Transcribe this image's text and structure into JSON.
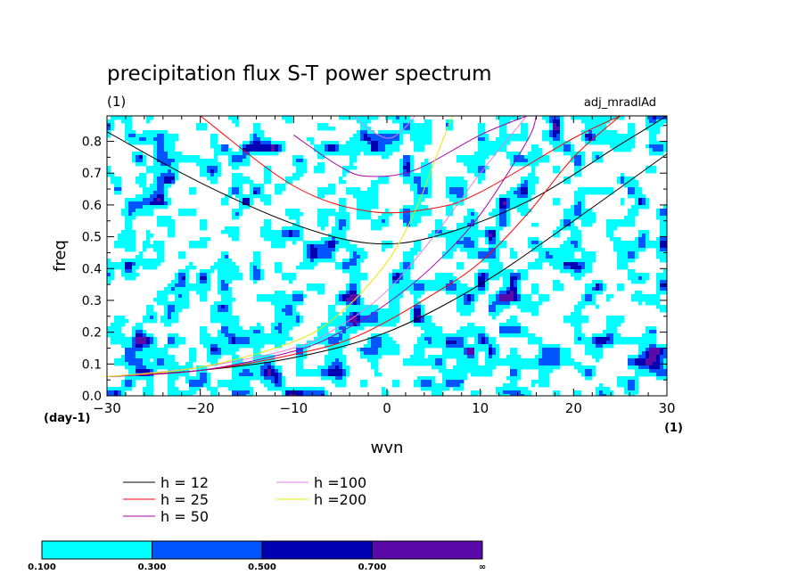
{
  "chart_data": {
    "type": "contour",
    "title": "precipitation flux S-T power spectrum",
    "subtitle_left": "(1)",
    "subtitle_right": "adj_mradlAd",
    "xlabel": "wvn",
    "ylabel": "freq",
    "x_unit": "(1)",
    "y_unit": "(day-1)",
    "xlim": [
      -30,
      30
    ],
    "ylim": [
      0,
      0.88
    ],
    "xticks": [
      -30,
      -20,
      -10,
      0,
      10,
      20,
      30
    ],
    "xtick_labels": [
      "-30",
      "-20",
      "-10",
      "0",
      "10",
      "20",
      "30"
    ],
    "yticks": [
      0,
      0.1,
      0.2,
      0.3,
      0.4,
      0.5,
      0.6,
      0.7,
      0.8
    ],
    "ytick_labels": [
      "0.0",
      "0.1",
      "0.2",
      "0.3",
      "0.4",
      "0.5",
      "0.6",
      "0.7",
      "0.8"
    ],
    "contour_levels": [
      "0.100",
      "0.300",
      "0.500",
      "0.700",
      "∞"
    ],
    "contour_colors": [
      "#00ffff",
      "#0055ff",
      "#0000b3",
      "#5a0aa8"
    ],
    "dispersion_curves": [
      {
        "name": "h = 12",
        "color": "#000000",
        "kind": "ig",
        "x": [
          -30,
          -20,
          -10,
          -2,
          5,
          15,
          25,
          30
        ],
        "y": [
          0.83,
          0.67,
          0.54,
          0.48,
          0.5,
          0.61,
          0.79,
          0.88
        ]
      },
      {
        "name": "h = 12",
        "color": "#000000",
        "kind": "kelvin",
        "x": [
          -30,
          -20,
          -10,
          0,
          10,
          20,
          30
        ],
        "y": [
          0.06,
          0.08,
          0.12,
          0.2,
          0.35,
          0.55,
          0.76
        ]
      },
      {
        "name": "h = 25",
        "color": "#ff0000",
        "kind": "ig",
        "x": [
          -20,
          -10,
          -2,
          5,
          10,
          20,
          25
        ],
        "y": [
          0.88,
          0.66,
          0.58,
          0.59,
          0.64,
          0.81,
          0.88
        ]
      },
      {
        "name": "h = 25",
        "color": "#ff0000",
        "kind": "kelvin",
        "x": [
          -30,
          -20,
          -10,
          -3,
          5,
          10,
          15,
          20,
          25
        ],
        "y": [
          0.06,
          0.08,
          0.13,
          0.19,
          0.32,
          0.42,
          0.57,
          0.75,
          0.88
        ]
      },
      {
        "name": "h = 50",
        "color": "#aa00aa",
        "kind": "ig",
        "x": [
          -10,
          -5,
          -2,
          3,
          10,
          15
        ],
        "y": [
          0.82,
          0.72,
          0.69,
          0.71,
          0.82,
          0.88
        ]
      },
      {
        "name": "h = 50",
        "color": "#aa00aa",
        "kind": "kelvin",
        "x": [
          -30,
          -20,
          -10,
          -5,
          0,
          5,
          10,
          15,
          16
        ],
        "y": [
          0.06,
          0.08,
          0.14,
          0.2,
          0.29,
          0.41,
          0.57,
          0.8,
          0.88
        ]
      },
      {
        "name": "h =100",
        "color": "#e080e0",
        "kind": "ig",
        "x": [
          -3.5,
          -2,
          0,
          1.5,
          3
        ],
        "y": [
          0.88,
          0.84,
          0.81,
          0.83,
          0.88
        ]
      },
      {
        "name": "h =100",
        "color": "#e080e0",
        "kind": "kelvin",
        "x": [
          -30,
          -20,
          -10,
          -5,
          0,
          5,
          10,
          15
        ],
        "y": [
          0.06,
          0.09,
          0.15,
          0.22,
          0.33,
          0.5,
          0.7,
          0.88
        ]
      },
      {
        "name": "h =200",
        "color": "#e8e800",
        "kind": "kelvin",
        "x": [
          -30,
          -20,
          -10,
          -5,
          0,
          3,
          5,
          7
        ],
        "y": [
          0.06,
          0.09,
          0.17,
          0.26,
          0.42,
          0.58,
          0.73,
          0.88
        ]
      }
    ],
    "legend": [
      {
        "label": "h = 12",
        "color": "#000000"
      },
      {
        "label": "h = 25",
        "color": "#ff0000"
      },
      {
        "label": "h = 50",
        "color": "#aa00aa"
      },
      {
        "label": "h =100",
        "color": "#e080e0"
      },
      {
        "label": "h =200",
        "color": "#e8e800"
      }
    ],
    "blob_levels_summary": "scattered cyan (0.1-0.3) patches over most of the domain with small blue (0.3-0.5) cores and a few dark blue (0.5-0.7) dots"
  }
}
